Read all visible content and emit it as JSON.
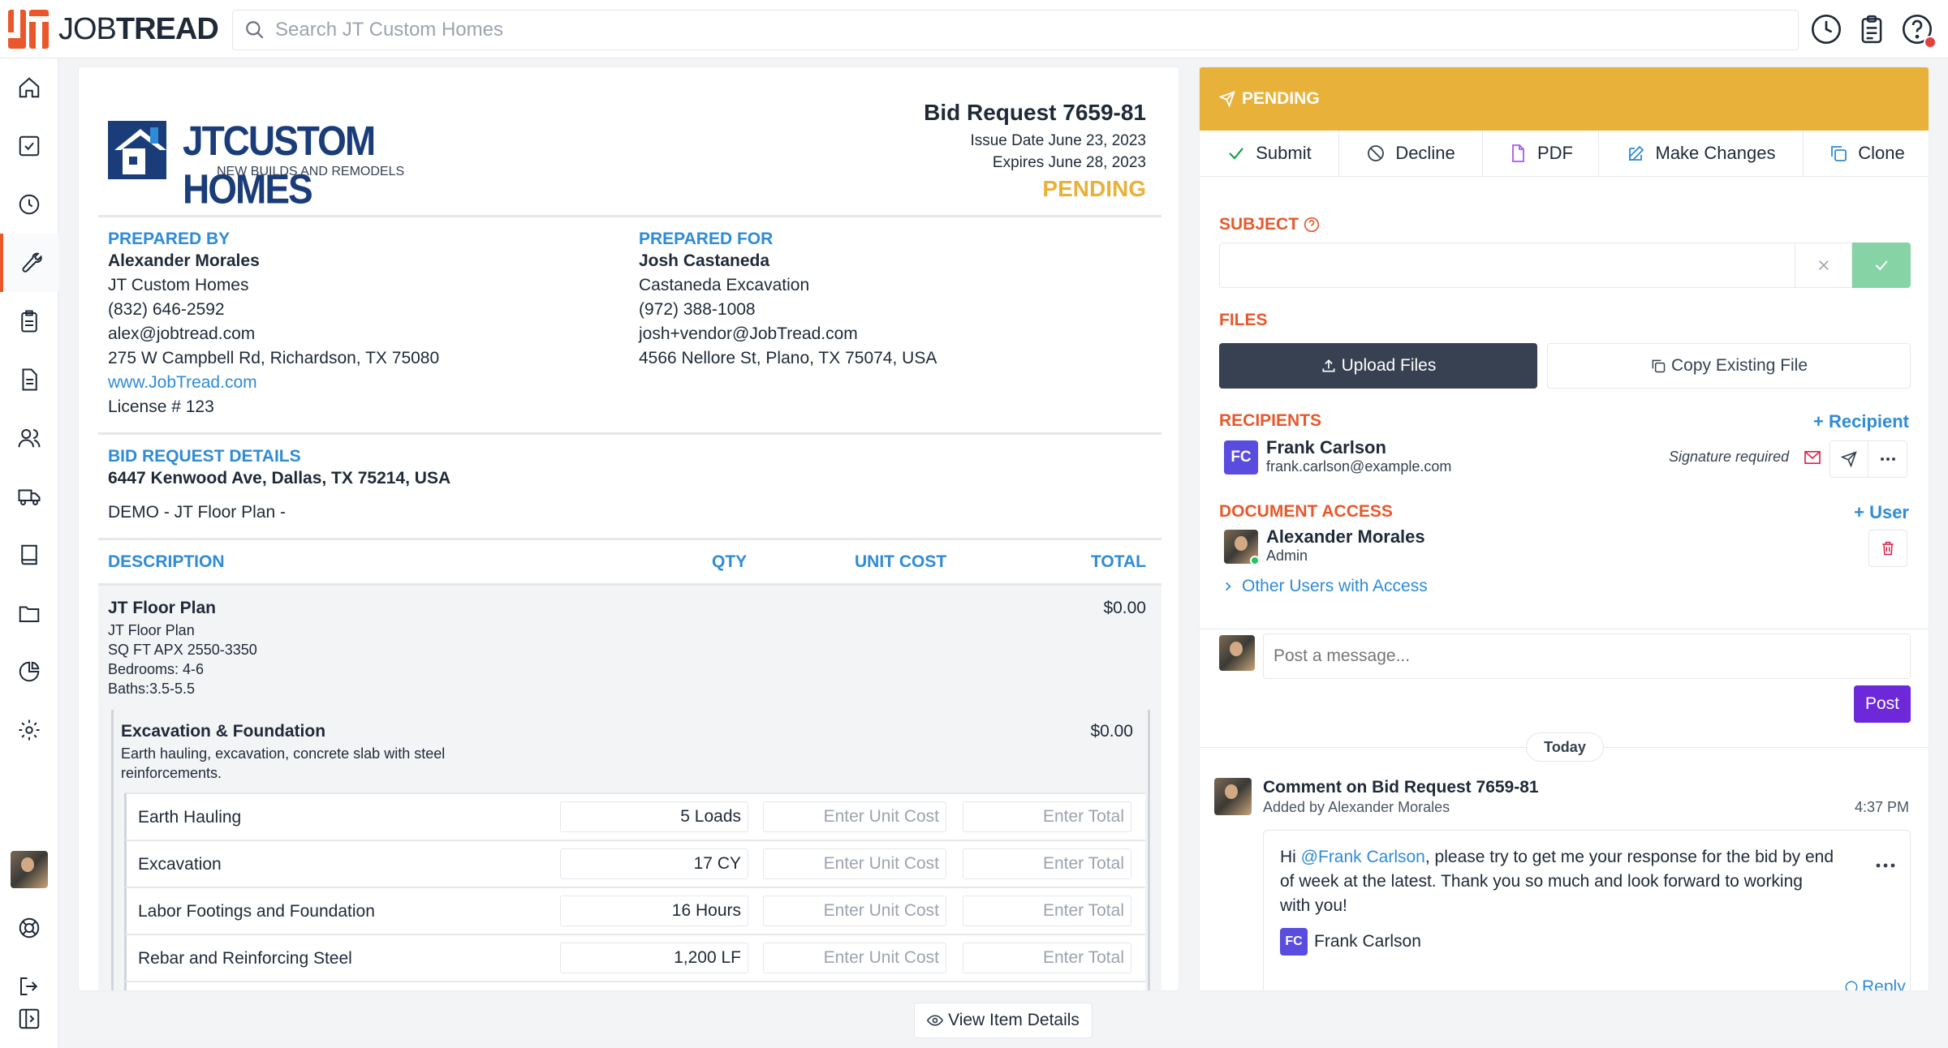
{
  "app": {
    "name_light": "JOB",
    "name_bold": "TREAD"
  },
  "search": {
    "placeholder": "Search JT Custom Homes"
  },
  "company": {
    "name": "JTCUSTOM HOMES",
    "tagline": "NEW BUILDS AND REMODELS"
  },
  "bid": {
    "title": "Bid Request 7659-81",
    "issue_date": "Issue Date June 23, 2023",
    "expires": "Expires June 28, 2023",
    "status": "PENDING"
  },
  "prepared_by": {
    "label": "PREPARED BY",
    "name": "Alexander Morales",
    "company": "JT Custom Homes",
    "phone": "(832) 646-2592",
    "email": "alex@jobtread.com",
    "address": "275 W Campbell Rd, Richardson, TX 75080",
    "website": "www.JobTread.com",
    "license": "License # 123"
  },
  "prepared_for": {
    "label": "PREPARED FOR",
    "name": "Josh Castaneda",
    "company": "Castaneda Excavation",
    "phone": "(972) 388-1008",
    "email": "josh+vendor@JobTread.com",
    "address": "4566 Nellore St, Plano, TX 75074, USA"
  },
  "details": {
    "label": "BID REQUEST DETAILS",
    "address": "6447 Kenwood Ave, Dallas, TX 75214, USA",
    "note": "DEMO - JT Floor Plan -"
  },
  "table": {
    "headers": {
      "description": "DESCRIPTION",
      "qty": "QTY",
      "unit_cost": "UNIT COST",
      "total": "TOTAL"
    },
    "group": {
      "name": "JT Floor Plan",
      "total": "$0.00",
      "lines": [
        "JT Floor Plan",
        "SQ FT APX 2550-3350",
        "Bedrooms: 4-6",
        "Baths:3.5-5.5"
      ]
    },
    "subgroup": {
      "name": "Excavation & Foundation",
      "total": "$0.00",
      "lines": [
        "Earth hauling, excavation, concrete slab with steel",
        "reinforcements."
      ]
    },
    "items": [
      {
        "name": "Earth Hauling",
        "qty": "5 Loads"
      },
      {
        "name": "Excavation",
        "qty": "17 CY"
      },
      {
        "name": "Labor Footings and Foundation",
        "qty": "16 Hours"
      },
      {
        "name": "Rebar and Reinforcing Steel",
        "qty": "1,200 LF"
      }
    ],
    "unit_cost_placeholder": "Enter Unit Cost",
    "total_placeholder": "Enter Total"
  },
  "view_details": "View Item Details",
  "panel": {
    "status": "PENDING",
    "actions": {
      "submit": "Submit",
      "decline": "Decline",
      "pdf": "PDF",
      "make_changes": "Make Changes",
      "clone": "Clone"
    },
    "subject_label": "SUBJECT",
    "subject_value": "",
    "files_label": "FILES",
    "upload": "Upload Files",
    "copy": "Copy Existing File",
    "recipients_label": "RECIPIENTS",
    "add_recipient": "+ Recipient",
    "recipient": {
      "initials": "FC",
      "name": "Frank Carlson",
      "email": "frank.carlson@example.com",
      "signature": "Signature required"
    },
    "access_label": "DOCUMENT ACCESS",
    "add_user": "+ User",
    "access_user": {
      "name": "Alexander Morales",
      "role": "Admin"
    },
    "other_users": "Other Users with Access",
    "message_placeholder": "Post a message...",
    "post": "Post",
    "today": "Today",
    "comment": {
      "title": "Comment on Bid Request 7659-81",
      "added_by": "Added by Alexander Morales",
      "time": "4:37 PM",
      "mention": "@Frank Carlson",
      "body_after": ", please try to get me your response for the bid by end",
      "body_line2": "of week at the latest. Thank you so much and look forward to working",
      "body_line3": "with you!",
      "hi": "Hi ",
      "tagged_initials": "FC",
      "tagged_name": "Frank Carlson",
      "reply": "Reply"
    }
  },
  "colors": {
    "accent": "#e8582b",
    "blue": "#2f8bd6",
    "pending": "#e8b13a",
    "post": "#6d28d9",
    "dark_button": "#374151",
    "confirm": "#86d3a5"
  }
}
